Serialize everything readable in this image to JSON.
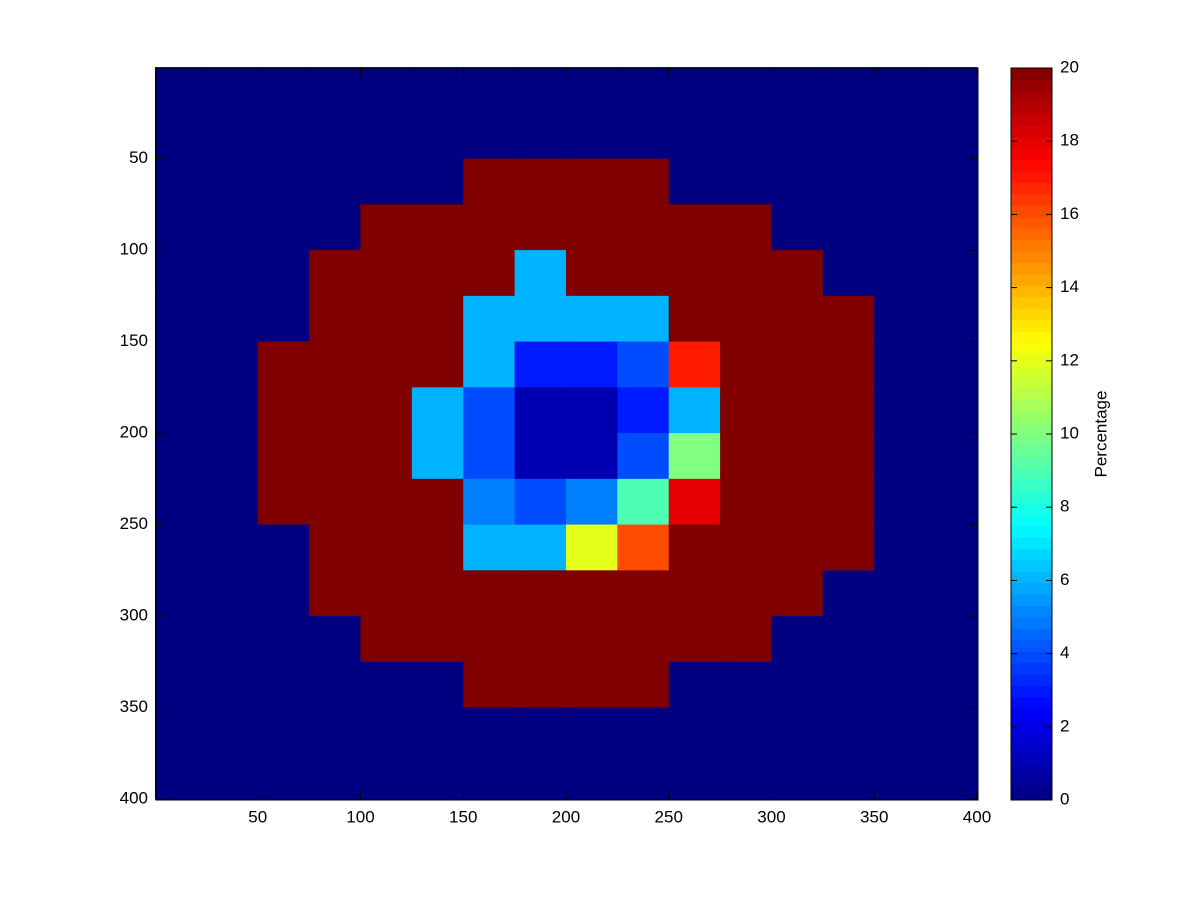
{
  "chart_data": {
    "type": "heatmap",
    "x": [
      12.5,
      37.5,
      62.5,
      87.5,
      112.5,
      137.5,
      162.5,
      187.5,
      212.5,
      237.5,
      262.5,
      287.5,
      312.5,
      337.5,
      362.5,
      387.5
    ],
    "y": [
      12.5,
      37.5,
      62.5,
      87.5,
      112.5,
      137.5,
      162.5,
      187.5,
      212.5,
      237.5,
      262.5,
      287.5,
      312.5,
      337.5,
      362.5,
      387.5
    ],
    "z": [
      [
        0,
        0,
        0,
        0,
        0,
        0,
        0,
        0,
        0,
        0,
        0,
        0,
        0,
        0,
        0,
        0
      ],
      [
        0,
        0,
        0,
        0,
        0,
        0,
        0,
        0,
        0,
        0,
        0,
        0,
        0,
        0,
        0,
        0
      ],
      [
        0,
        0,
        0,
        0,
        0,
        0,
        20,
        20,
        20,
        20,
        0,
        0,
        0,
        0,
        0,
        0
      ],
      [
        0,
        0,
        0,
        0,
        20,
        20,
        20,
        20,
        20,
        20,
        20,
        20,
        0,
        0,
        0,
        0
      ],
      [
        0,
        0,
        0,
        20,
        20,
        20,
        20,
        6,
        20,
        20,
        20,
        20,
        20,
        0,
        0,
        0
      ],
      [
        0,
        0,
        0,
        20,
        20,
        20,
        6,
        6,
        6,
        6,
        20,
        20,
        20,
        20,
        0,
        0
      ],
      [
        0,
        0,
        20,
        20,
        20,
        20,
        6,
        3,
        3,
        4,
        17,
        20,
        20,
        20,
        0,
        0
      ],
      [
        0,
        0,
        20,
        20,
        20,
        6,
        4,
        1,
        1,
        3,
        6,
        20,
        20,
        20,
        0,
        0
      ],
      [
        0,
        0,
        20,
        20,
        20,
        6,
        4,
        1,
        1,
        4,
        10,
        20,
        20,
        20,
        0,
        0
      ],
      [
        0,
        0,
        20,
        20,
        20,
        20,
        5,
        4,
        5,
        9,
        18,
        20,
        20,
        20,
        0,
        0
      ],
      [
        0,
        0,
        0,
        20,
        20,
        20,
        6,
        6,
        12,
        16,
        20,
        20,
        20,
        20,
        0,
        0
      ],
      [
        0,
        0,
        0,
        20,
        20,
        20,
        20,
        20,
        20,
        20,
        20,
        20,
        20,
        0,
        0,
        0
      ],
      [
        0,
        0,
        0,
        0,
        20,
        20,
        20,
        20,
        20,
        20,
        20,
        20,
        0,
        0,
        0,
        0
      ],
      [
        0,
        0,
        0,
        0,
        0,
        0,
        20,
        20,
        20,
        20,
        0,
        0,
        0,
        0,
        0,
        0
      ],
      [
        0,
        0,
        0,
        0,
        0,
        0,
        0,
        0,
        0,
        0,
        0,
        0,
        0,
        0,
        0,
        0
      ],
      [
        0,
        0,
        0,
        0,
        0,
        0,
        0,
        0,
        0,
        0,
        0,
        0,
        0,
        0,
        0,
        0
      ]
    ],
    "xlim": [
      0.5,
      400.5
    ],
    "ylim": [
      400.5,
      0.5
    ],
    "xticks": [
      50,
      100,
      150,
      200,
      250,
      300,
      350,
      400
    ],
    "yticks": [
      50,
      100,
      150,
      200,
      250,
      300,
      350,
      400
    ],
    "colormap": "jet",
    "clim": [
      0,
      20
    ],
    "cticks": [
      0,
      2,
      4,
      6,
      8,
      10,
      12,
      14,
      16,
      18,
      20
    ],
    "colorbar_label": "Percentage"
  }
}
